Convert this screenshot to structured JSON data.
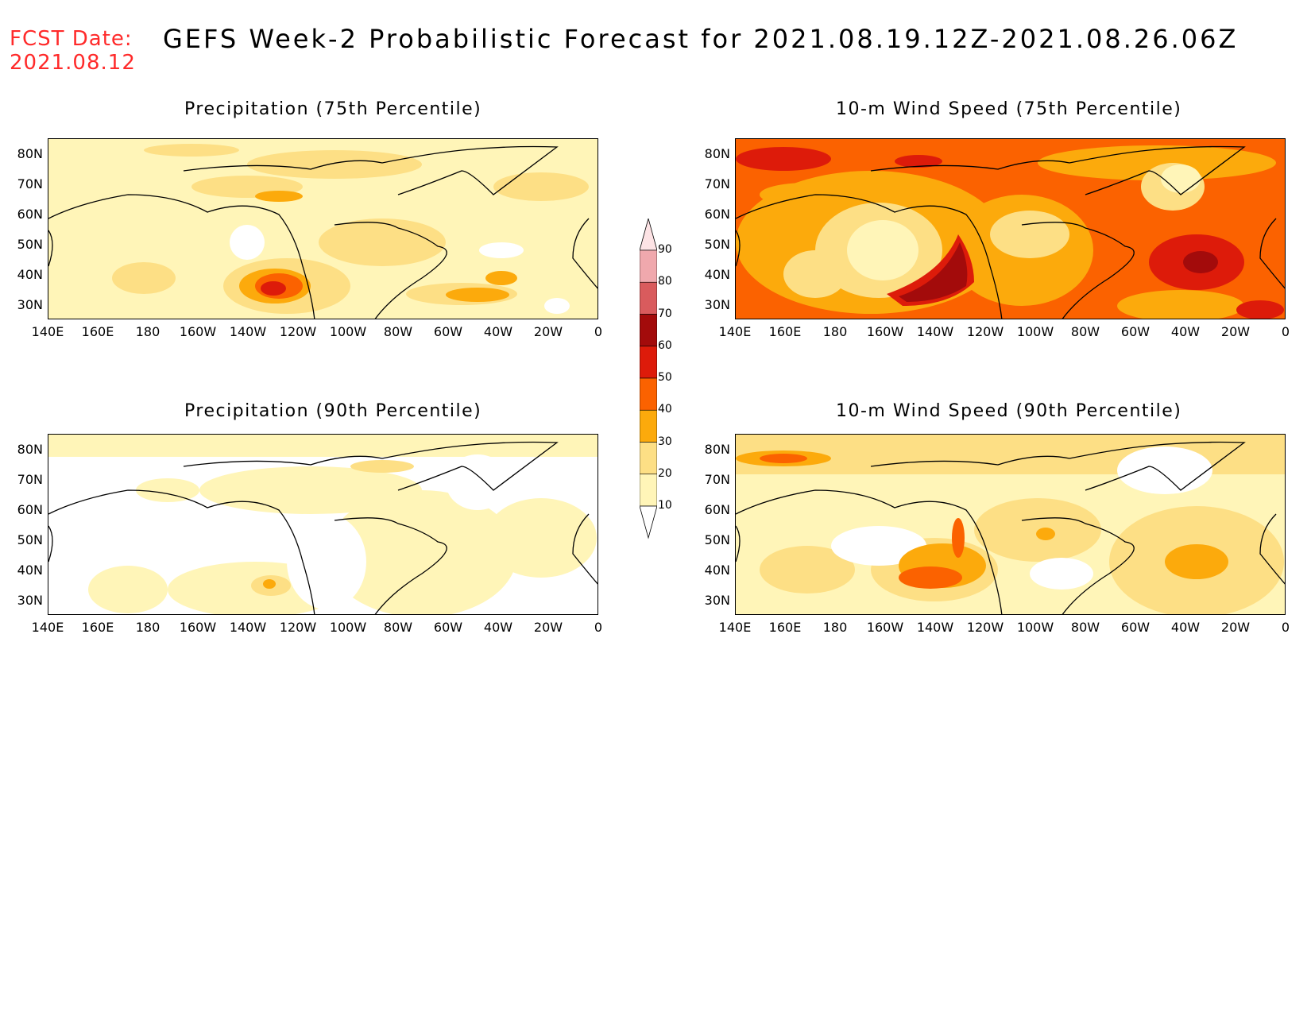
{
  "header": {
    "fcst_label": "FCST Date:",
    "fcst_date": "2021.08.12",
    "title": "GEFS Week-2 Probabilistic Forecast for 2021.08.19.12Z-2021.08.26.06Z"
  },
  "panels": [
    {
      "id": "precip75",
      "title": "Precipitation (75th Percentile)",
      "field": "precipitation",
      "percentile": 75
    },
    {
      "id": "wind75",
      "title": "10-m Wind Speed (75th Percentile)",
      "field": "wind",
      "percentile": 75
    },
    {
      "id": "precip90",
      "title": "Precipitation (90th Percentile)",
      "field": "precipitation",
      "percentile": 90
    },
    {
      "id": "wind90",
      "title": "10-m Wind Speed (90th Percentile)",
      "field": "wind",
      "percentile": 90
    }
  ],
  "axes": {
    "lat_labels": [
      "80N",
      "70N",
      "60N",
      "50N",
      "40N",
      "30N"
    ],
    "lon_labels": [
      "140E",
      "160E",
      "180",
      "160W",
      "140W",
      "120W",
      "100W",
      "80W",
      "60W",
      "40W",
      "20W",
      "0"
    ]
  },
  "colorbar": {
    "levels": [
      "90",
      "80",
      "70",
      "60",
      "50",
      "40",
      "30",
      "20",
      "10"
    ],
    "colors": {
      "below10": "#ffffff",
      "10-20": "#fff5b8",
      "20-30": "#fddf85",
      "30-40": "#fcaa0c",
      "40-50": "#fb6200",
      "50-60": "#dd1b0a",
      "60-70": "#a30b0b",
      "70-80": "#d95b5d",
      "80-90": "#f0a8ad",
      "above90": "#fde3e5"
    }
  }
}
